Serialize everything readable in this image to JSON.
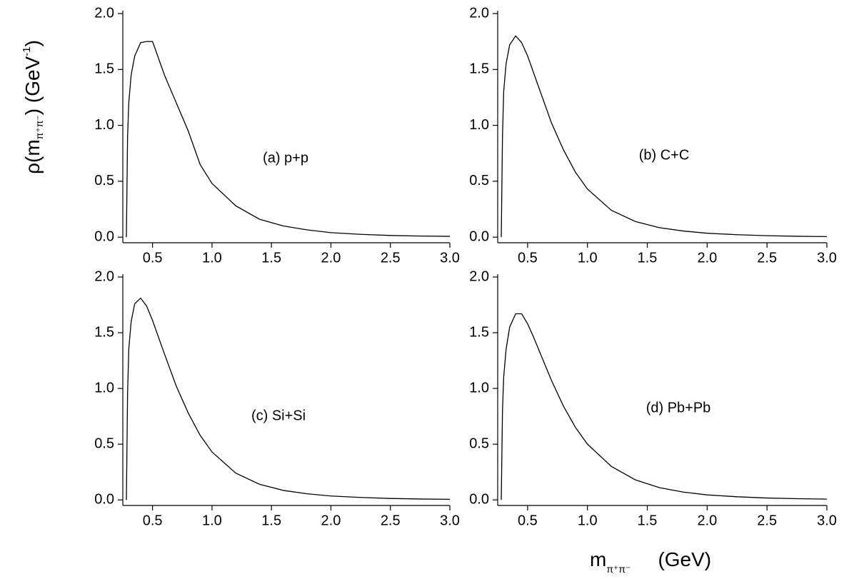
{
  "axis_labels": {
    "y": {
      "main": "ρ(m",
      "sub": "π⁺π⁻",
      "mid": ")   (GeV",
      "sup": "-1",
      "end": ")"
    },
    "x": {
      "main": "m",
      "sub": "π⁺π⁻",
      "unit": "(GeV)"
    }
  },
  "chart_data": [
    {
      "type": "line",
      "annotation": "(a)  p+p",
      "x": [
        0.28,
        0.29,
        0.3,
        0.32,
        0.35,
        0.4,
        0.45,
        0.5,
        0.55,
        0.6,
        0.7,
        0.8,
        0.9,
        1.0,
        1.2,
        1.4,
        1.6,
        1.8,
        2.0,
        2.25,
        2.5,
        2.75,
        3.0
      ],
      "series": [
        {
          "color": "#000000",
          "values": [
            0,
            0.9,
            1.2,
            1.45,
            1.62,
            1.74,
            1.75,
            1.75,
            1.6,
            1.45,
            1.2,
            0.95,
            0.65,
            0.48,
            0.28,
            0.16,
            0.1,
            0.065,
            0.04,
            0.025,
            0.015,
            0.01,
            0.007
          ]
        }
      ],
      "xlim": [
        0.25,
        3.0
      ],
      "xticks": [
        0.5,
        {
          "value": 1,
          "label": "1.0"
        },
        1.5,
        {
          "value": 2,
          "label": "2.0"
        },
        2.5,
        {
          "value": 3,
          "label": "3.0"
        }
      ],
      "ylim": [
        -0.05,
        2.0
      ],
      "yticks": [
        {
          "value": 0,
          "label": "0.0"
        },
        0.5,
        {
          "value": 1,
          "label": "1.0"
        },
        1.5,
        {
          "value": 2,
          "label": "2.0"
        }
      ]
    },
    {
      "type": "line",
      "annotation": "(b)  C+C",
      "x": [
        0.28,
        0.29,
        0.3,
        0.32,
        0.35,
        0.4,
        0.45,
        0.5,
        0.55,
        0.6,
        0.7,
        0.8,
        0.9,
        1.0,
        1.2,
        1.4,
        1.6,
        1.8,
        2.0,
        2.25,
        2.5,
        2.75,
        3.0
      ],
      "series": [
        {
          "color": "#000000",
          "values": [
            0,
            0.9,
            1.3,
            1.55,
            1.72,
            1.8,
            1.74,
            1.62,
            1.47,
            1.32,
            1.02,
            0.78,
            0.58,
            0.43,
            0.24,
            0.14,
            0.085,
            0.055,
            0.035,
            0.022,
            0.013,
            0.008,
            0.005
          ]
        }
      ],
      "xlim": [
        0.25,
        3.0
      ],
      "xticks": [
        0.5,
        {
          "value": 1,
          "label": "1.0"
        },
        1.5,
        {
          "value": 2,
          "label": "2.0"
        },
        2.5,
        {
          "value": 3,
          "label": "3.0"
        }
      ],
      "ylim": [
        -0.05,
        2.0
      ],
      "yticks": [
        {
          "value": 0,
          "label": "0.0"
        },
        0.5,
        {
          "value": 1,
          "label": "1.0"
        },
        1.5,
        {
          "value": 2,
          "label": "2.0"
        }
      ]
    },
    {
      "type": "line",
      "annotation": "(c)  Si+Si",
      "x": [
        0.28,
        0.29,
        0.3,
        0.32,
        0.35,
        0.4,
        0.45,
        0.5,
        0.55,
        0.6,
        0.7,
        0.8,
        0.9,
        1.0,
        1.2,
        1.4,
        1.6,
        1.8,
        2.0,
        2.25,
        2.5,
        2.75,
        3.0
      ],
      "series": [
        {
          "color": "#000000",
          "values": [
            0,
            0.95,
            1.35,
            1.6,
            1.76,
            1.81,
            1.74,
            1.61,
            1.46,
            1.31,
            1.02,
            0.78,
            0.58,
            0.43,
            0.24,
            0.14,
            0.085,
            0.055,
            0.035,
            0.022,
            0.013,
            0.008,
            0.005
          ]
        }
      ],
      "xlim": [
        0.25,
        3.0
      ],
      "xticks": [
        0.5,
        {
          "value": 1,
          "label": "1.0"
        },
        1.5,
        {
          "value": 2,
          "label": "2.0"
        },
        2.5,
        {
          "value": 3,
          "label": "3.0"
        }
      ],
      "ylim": [
        -0.05,
        2.0
      ],
      "yticks": [
        {
          "value": 0,
          "label": "0.0"
        },
        0.5,
        {
          "value": 1,
          "label": "1.0"
        },
        1.5,
        {
          "value": 2,
          "label": "2.0"
        }
      ]
    },
    {
      "type": "line",
      "annotation": "(d)  Pb+Pb",
      "x": [
        0.28,
        0.29,
        0.3,
        0.32,
        0.35,
        0.4,
        0.45,
        0.5,
        0.55,
        0.6,
        0.7,
        0.8,
        0.9,
        1.0,
        1.2,
        1.4,
        1.6,
        1.8,
        2.0,
        2.25,
        2.5,
        2.75,
        3.0
      ],
      "series": [
        {
          "color": "#000000",
          "values": [
            0,
            0.8,
            1.1,
            1.35,
            1.55,
            1.67,
            1.67,
            1.58,
            1.46,
            1.33,
            1.07,
            0.84,
            0.65,
            0.5,
            0.3,
            0.18,
            0.11,
            0.07,
            0.045,
            0.028,
            0.017,
            0.011,
            0.007
          ]
        }
      ],
      "xlim": [
        0.25,
        3.0
      ],
      "xticks": [
        0.5,
        {
          "value": 1,
          "label": "1.0"
        },
        1.5,
        {
          "value": 2,
          "label": "2.0"
        },
        2.5,
        {
          "value": 3,
          "label": "3.0"
        }
      ],
      "ylim": [
        -0.05,
        2.0
      ],
      "yticks": [
        {
          "value": 0,
          "label": "0.0"
        },
        0.5,
        {
          "value": 1,
          "label": "1.0"
        },
        1.5,
        {
          "value": 2,
          "label": "2.0"
        }
      ]
    }
  ]
}
